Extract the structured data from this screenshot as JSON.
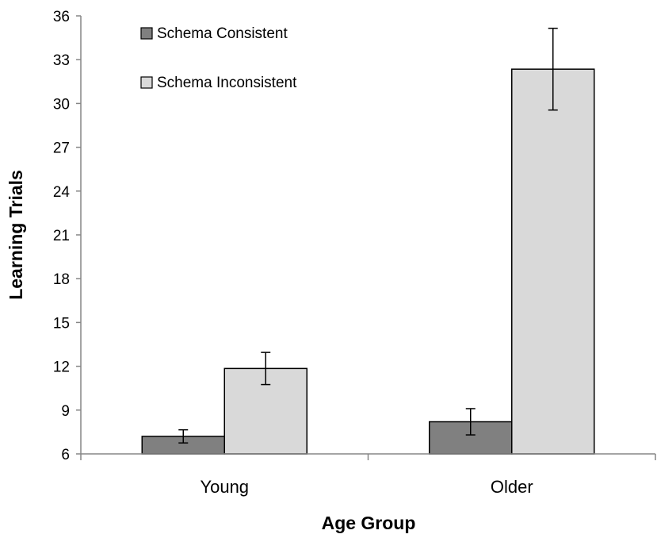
{
  "chart_data": {
    "type": "bar",
    "title": "",
    "xlabel": "Age Group",
    "ylabel": "Learning Trials",
    "categories": [
      "Young",
      "Older"
    ],
    "ylim": [
      6,
      36
    ],
    "yticks": [
      6,
      9,
      12,
      15,
      18,
      21,
      24,
      27,
      30,
      33,
      36
    ],
    "legend_position": "top-left",
    "grid": false,
    "series": [
      {
        "name": "Schema Consistent",
        "color": "#808080",
        "values": [
          7.2,
          8.2
        ],
        "error": [
          0.45,
          0.9
        ]
      },
      {
        "name": "Schema Inconsistent",
        "color": "#d9d9d9",
        "values": [
          11.85,
          32.35
        ],
        "error": [
          1.1,
          2.8
        ]
      }
    ]
  }
}
